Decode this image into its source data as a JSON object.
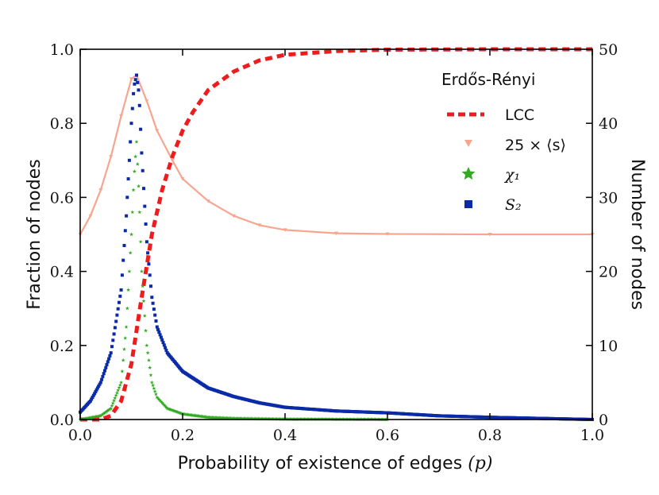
{
  "chart_data": {
    "type": "line",
    "title": "",
    "legend_title": "Erdős-Rényi",
    "legend_position": "top-right",
    "xlabel": "Probability of existence of edges (p)",
    "xlabel_text": "Probability of existence of edges ",
    "xlabel_var": "(p)",
    "ylabel_left": "Fraction of nodes",
    "ylabel_right": "Number of nodes",
    "xlim": [
      0.0,
      1.0
    ],
    "ylim_left": [
      0.0,
      1.0
    ],
    "ylim_right": [
      0,
      50
    ],
    "x_ticks": [
      "0.0",
      "0.2",
      "0.4",
      "0.6",
      "0.8",
      "1.0"
    ],
    "y_left_ticks": [
      "0.0",
      "0.2",
      "0.4",
      "0.6",
      "0.8",
      "1.0"
    ],
    "y_right_ticks": [
      "0",
      "10",
      "20",
      "30",
      "40",
      "50"
    ],
    "series": [
      {
        "name": "LCC",
        "label": "LCC",
        "axis": "left",
        "style": "dashed",
        "color": "#ee1c1c",
        "x": [
          0.0,
          0.04,
          0.06,
          0.08,
          0.1,
          0.12,
          0.14,
          0.16,
          0.18,
          0.2,
          0.22,
          0.25,
          0.3,
          0.35,
          0.4,
          0.5,
          0.6,
          0.8,
          1.0
        ],
        "y": [
          0.0,
          0.0,
          0.01,
          0.05,
          0.15,
          0.33,
          0.5,
          0.62,
          0.71,
          0.78,
          0.83,
          0.89,
          0.94,
          0.97,
          0.985,
          0.995,
          0.999,
          1.0,
          1.0
        ]
      },
      {
        "name": "25 x <s>",
        "label": "25 × ⟨s⟩",
        "axis": "left",
        "style": "triangle-markers",
        "color": "#f7a58e",
        "x": [
          0.0,
          0.02,
          0.04,
          0.06,
          0.08,
          0.1,
          0.11,
          0.13,
          0.15,
          0.18,
          0.2,
          0.25,
          0.3,
          0.35,
          0.4,
          0.5,
          0.6,
          0.8,
          1.0
        ],
        "y": [
          0.5,
          0.55,
          0.62,
          0.71,
          0.82,
          0.92,
          0.93,
          0.86,
          0.78,
          0.7,
          0.65,
          0.59,
          0.55,
          0.525,
          0.512,
          0.503,
          0.501,
          0.5,
          0.5
        ]
      },
      {
        "name": "chi_1",
        "label": "χ₁",
        "axis": "left",
        "style": "star-markers",
        "color": "#33aa22",
        "x": [
          0.0,
          0.04,
          0.06,
          0.08,
          0.09,
          0.1,
          0.105,
          0.11,
          0.115,
          0.12,
          0.13,
          0.14,
          0.15,
          0.17,
          0.2,
          0.25,
          0.3,
          0.4,
          0.6,
          1.0
        ],
        "y": [
          0.0,
          0.01,
          0.03,
          0.1,
          0.25,
          0.5,
          0.65,
          0.75,
          0.6,
          0.4,
          0.2,
          0.1,
          0.06,
          0.03,
          0.015,
          0.006,
          0.003,
          0.001,
          0.0,
          0.0
        ]
      },
      {
        "name": "S_2",
        "label": "S₂",
        "axis": "left",
        "style": "square-markers",
        "color": "#0a2aa8",
        "x": [
          0.0,
          0.02,
          0.04,
          0.06,
          0.08,
          0.09,
          0.1,
          0.105,
          0.11,
          0.115,
          0.12,
          0.13,
          0.14,
          0.15,
          0.17,
          0.2,
          0.25,
          0.3,
          0.35,
          0.4,
          0.5,
          0.6,
          0.7,
          0.8,
          0.9,
          1.0
        ],
        "y": [
          0.02,
          0.05,
          0.1,
          0.18,
          0.35,
          0.55,
          0.8,
          0.9,
          0.93,
          0.88,
          0.72,
          0.48,
          0.33,
          0.25,
          0.18,
          0.13,
          0.085,
          0.062,
          0.045,
          0.033,
          0.023,
          0.018,
          0.01,
          0.006,
          0.003,
          0.0
        ]
      }
    ]
  }
}
